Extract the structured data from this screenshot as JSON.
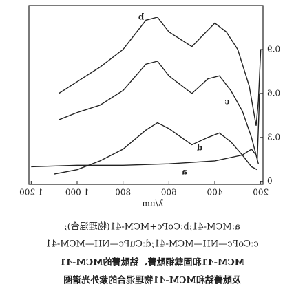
{
  "chart_data": {
    "type": "line",
    "x_label": "λ/nm",
    "xlim": [
      190,
      1210
    ],
    "ylim": [
      -0.02,
      1.2
    ],
    "xticks": [
      {
        "value": 1200,
        "label": "1 200"
      },
      {
        "value": 1000,
        "label": "1 000"
      },
      800,
      600,
      400,
      200
    ],
    "yticks": [
      0,
      0.3,
      0.6,
      0.9
    ],
    "color": "#222222",
    "mirrored": true,
    "series": [
      {
        "name": "a",
        "x": [
          1200,
          1000,
          800,
          600,
          400,
          280,
          240,
          220,
          210
        ],
        "values": [
          0.1,
          0.11,
          0.11,
          0.12,
          0.14,
          0.18,
          0.22,
          0.18,
          0.12
        ]
      },
      {
        "name": "b",
        "x": [
          1080,
          1000,
          900,
          800,
          700,
          650,
          600,
          500,
          450,
          400,
          350,
          300,
          250,
          220,
          210,
          200
        ],
        "values": [
          0.6,
          0.68,
          0.78,
          0.9,
          1.1,
          1.12,
          1.02,
          0.92,
          1.0,
          1.08,
          1.02,
          0.9,
          0.65,
          0.38,
          0.55,
          0.9
        ]
      },
      {
        "name": "c",
        "x": [
          1080,
          1000,
          900,
          800,
          700,
          650,
          600,
          500,
          430,
          380,
          330,
          280,
          240,
          215,
          205
        ],
        "values": [
          0.42,
          0.47,
          0.52,
          0.62,
          0.8,
          0.82,
          0.72,
          0.6,
          0.7,
          0.72,
          0.62,
          0.48,
          0.3,
          0.15,
          0.6
        ]
      },
      {
        "name": "d",
        "x": [
          1100,
          1000,
          900,
          800,
          700,
          650,
          600,
          500,
          430,
          380,
          330,
          280,
          240,
          215
        ],
        "values": [
          0.05,
          0.08,
          0.14,
          0.22,
          0.35,
          0.4,
          0.36,
          0.25,
          0.3,
          0.33,
          0.27,
          0.18,
          0.1,
          0.08
        ]
      }
    ],
    "caption": [
      "a:MCM-41;b:CoPc+MCM-41(物理混合);",
      "c:CoPc—NH—MCM-41;d:CuPc—NH—MCM-41",
      "MCM-41和固载铜酞菁、钴酞菁的MCM-41",
      "及酞菁钴和MCM-41物理混合的紫外光谱图"
    ]
  }
}
